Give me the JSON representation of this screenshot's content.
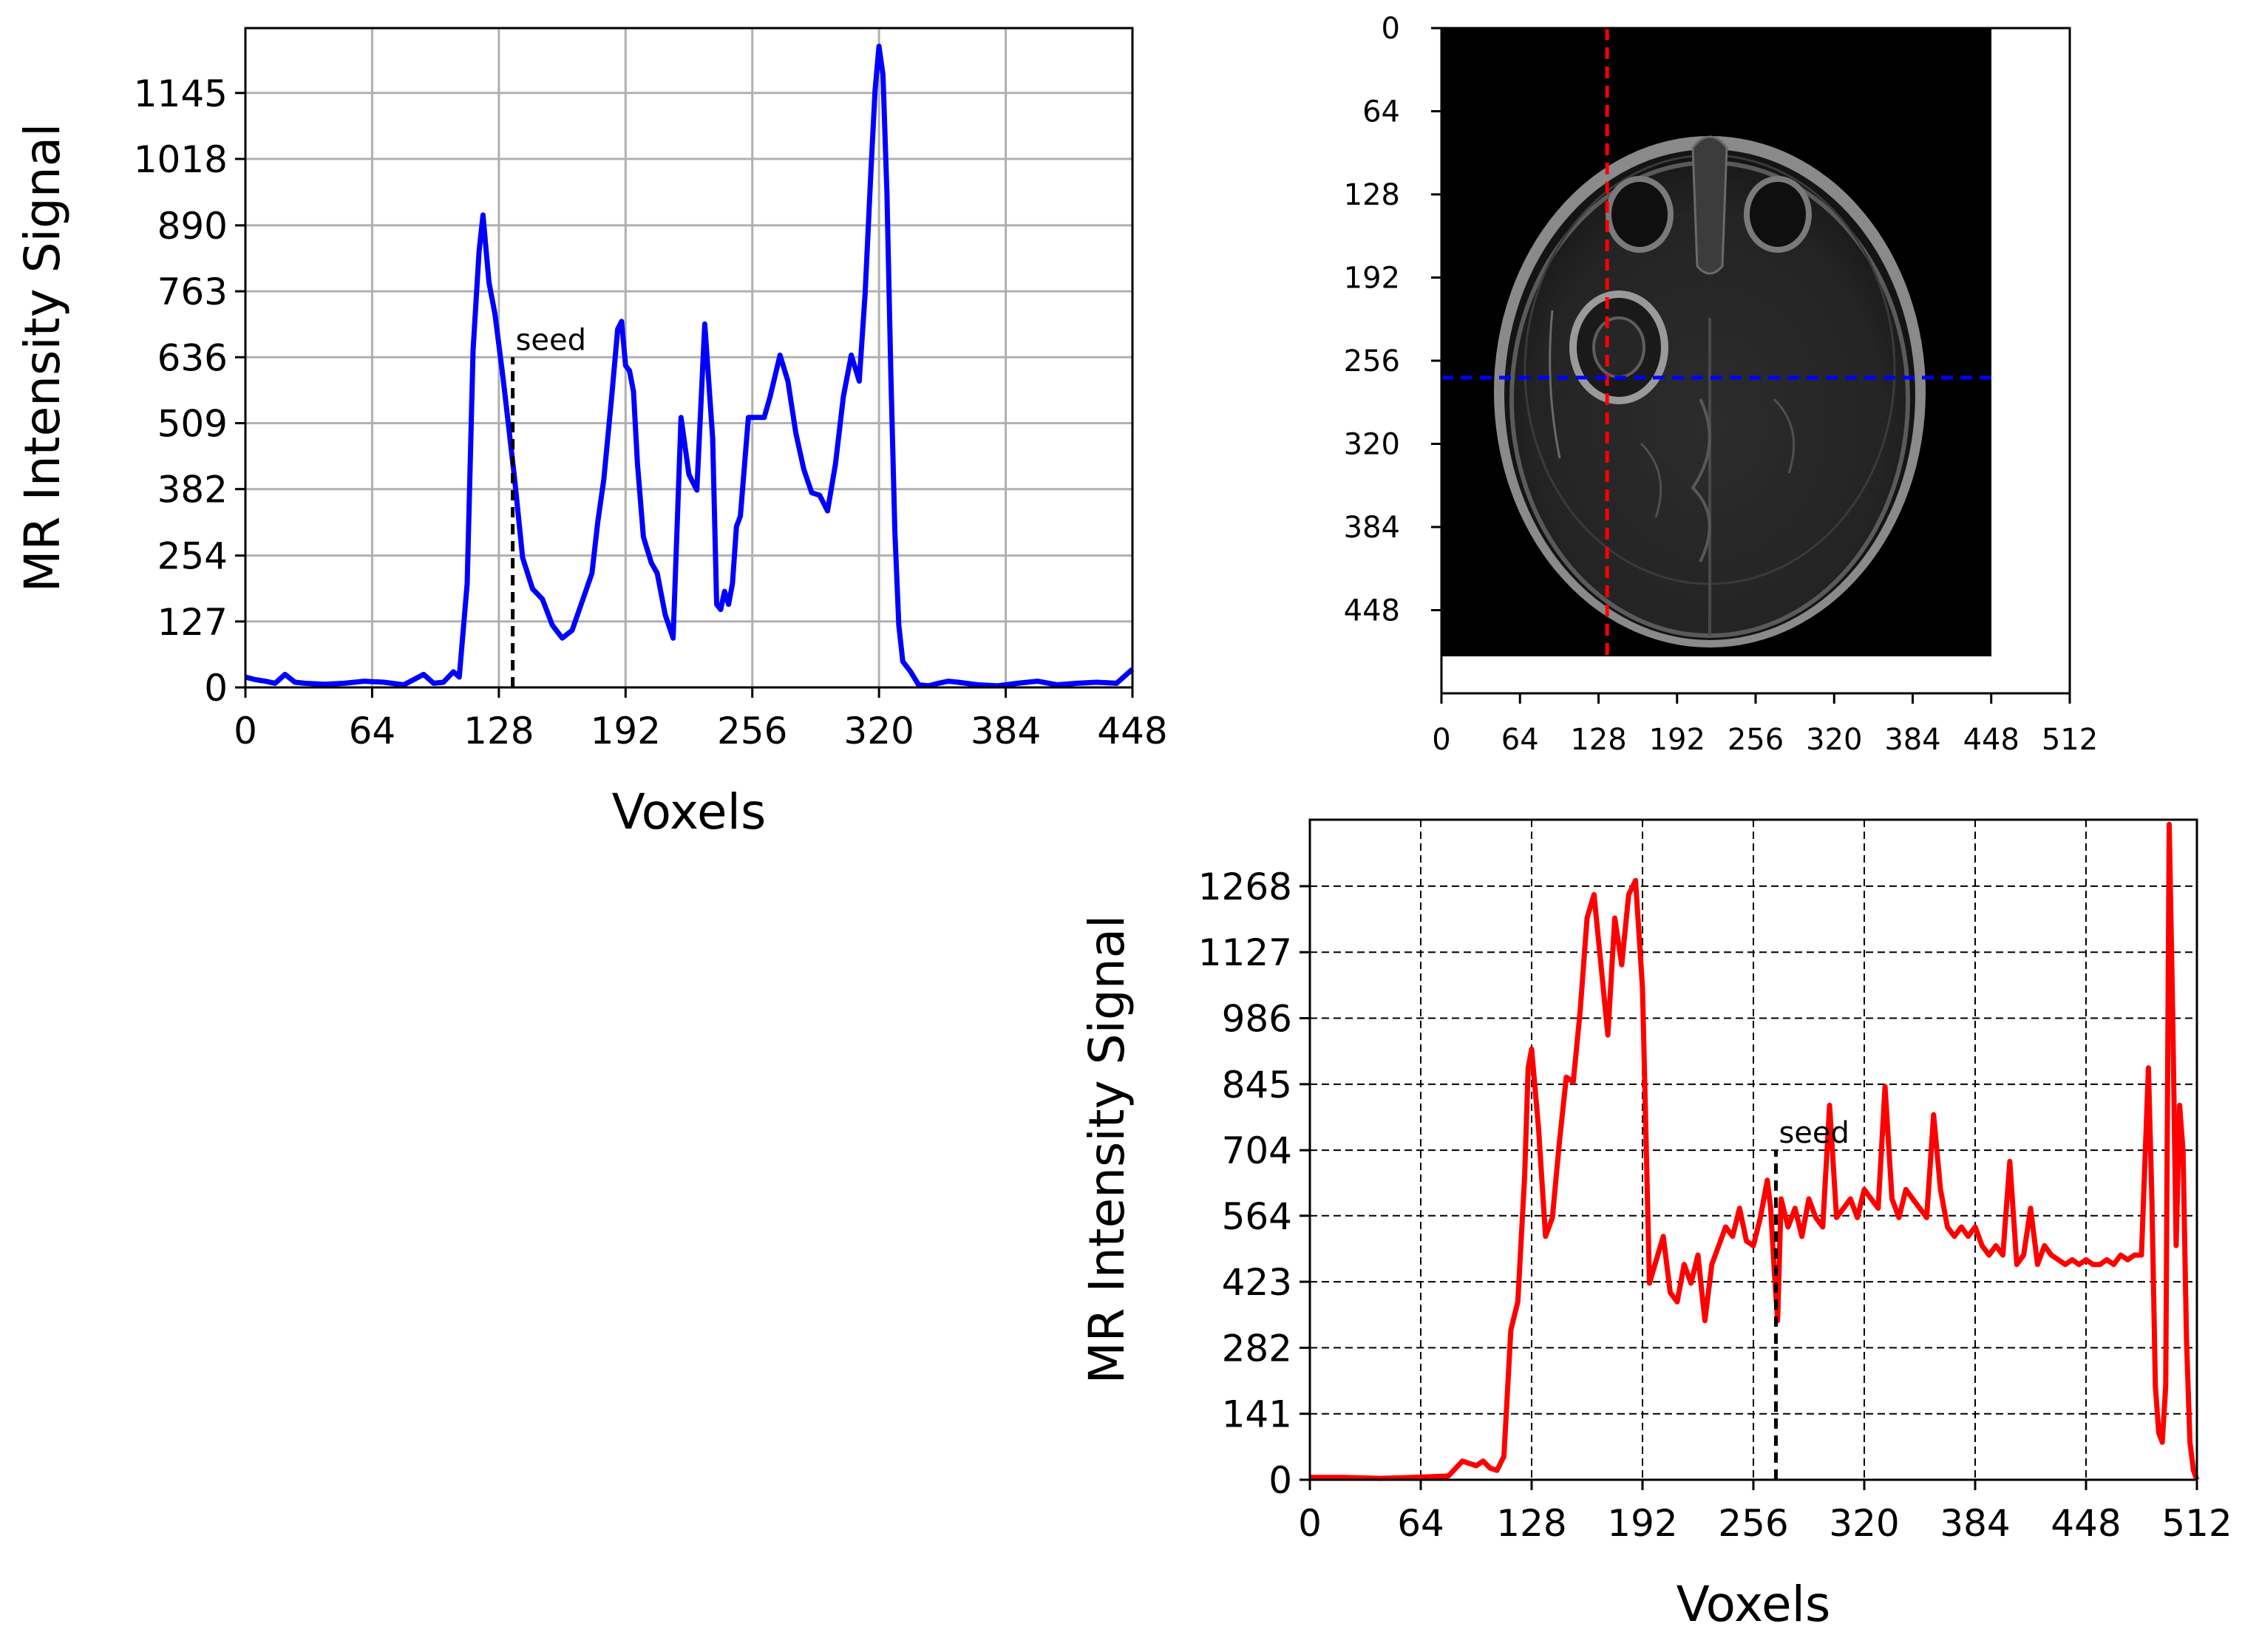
{
  "figure": {
    "colors": {
      "horizontal_profile": "#0000ff",
      "vertical_profile": "#ff0000",
      "seed_line": "#000000",
      "grid": "#b0b0b0"
    }
  },
  "chart_data": [
    {
      "id": "horizontal_profile",
      "type": "line",
      "xlabel": "Voxels",
      "ylabel": "MR Intensity Signal",
      "xlim": [
        0,
        448
      ],
      "ylim": [
        0,
        1270
      ],
      "xticks": [
        0,
        64,
        128,
        192,
        256,
        320,
        384,
        448
      ],
      "yticks": [
        0,
        127,
        254,
        382,
        509,
        636,
        763,
        890,
        1018,
        1145
      ],
      "grid": "solid",
      "color": "#0000ff",
      "annotation": {
        "text": "seed",
        "x": 135,
        "y": 636
      },
      "series": [
        {
          "x": [
            0,
            5,
            10,
            15,
            20,
            25,
            30,
            40,
            50,
            60,
            70,
            80,
            90,
            95,
            100,
            105,
            108,
            112,
            115,
            118,
            120,
            123,
            126,
            130,
            133,
            136,
            140,
            145,
            150,
            155,
            160,
            165,
            170,
            175,
            178,
            181,
            185,
            188,
            190,
            192,
            194,
            196,
            198,
            201,
            205,
            208,
            212,
            216,
            220,
            224,
            228,
            232,
            236,
            238,
            240,
            242,
            244,
            246,
            248,
            250,
            254,
            258,
            262,
            265,
            270,
            274,
            278,
            282,
            286,
            290,
            294,
            298,
            302,
            306,
            310,
            313,
            316,
            318,
            320,
            322,
            324,
            326,
            328,
            330,
            332,
            336,
            340,
            345,
            350,
            355,
            360,
            370,
            380,
            390,
            400,
            410,
            420,
            430,
            440,
            445,
            448
          ],
          "y": [
            20,
            15,
            12,
            8,
            25,
            10,
            8,
            6,
            8,
            12,
            10,
            5,
            25,
            8,
            10,
            30,
            20,
            200,
            650,
            840,
            910,
            780,
            720,
            600,
            500,
            400,
            250,
            190,
            170,
            120,
            95,
            110,
            165,
            220,
            320,
            400,
            560,
            690,
            705,
            620,
            610,
            570,
            430,
            290,
            240,
            220,
            140,
            95,
            520,
            410,
            380,
            700,
            480,
            160,
            150,
            185,
            160,
            200,
            310,
            330,
            520,
            520,
            520,
            560,
            640,
            590,
            490,
            420,
            375,
            370,
            340,
            430,
            560,
            640,
            590,
            760,
            1000,
            1150,
            1235,
            1180,
            950,
            600,
            300,
            120,
            50,
            30,
            5,
            3,
            8,
            12,
            10,
            5,
            3,
            8,
            12,
            5,
            8,
            10,
            8,
            25,
            35
          ]
        }
      ]
    },
    {
      "id": "axial_mri_slice",
      "type": "image",
      "xlim": [
        0,
        512
      ],
      "ylim": [
        512,
        0
      ],
      "xticks": [
        0,
        64,
        128,
        192,
        256,
        320,
        384,
        448,
        512
      ],
      "yticks": [
        0,
        64,
        128,
        192,
        256,
        320,
        384,
        448
      ],
      "image_extent": [
        0,
        448,
        512,
        0
      ],
      "crosshair": {
        "x": 135,
        "y": 269,
        "vertical_color": "#ff0000",
        "horizontal_color": "#0000ff",
        "style": "dashed"
      }
    },
    {
      "id": "vertical_profile",
      "type": "line",
      "xlabel": "Voxels",
      "ylabel": "MR Intensity Signal",
      "xlim": [
        0,
        512
      ],
      "ylim": [
        0,
        1410
      ],
      "xticks": [
        0,
        64,
        128,
        192,
        256,
        320,
        384,
        448,
        512
      ],
      "yticks": [
        0,
        141,
        282,
        423,
        564,
        704,
        845,
        986,
        1127,
        1268
      ],
      "grid": "dashed",
      "color": "#ff0000",
      "annotation": {
        "text": "seed",
        "x": 269,
        "y": 704
      },
      "series": [
        {
          "x": [
            0,
            20,
            40,
            60,
            80,
            88,
            92,
            96,
            100,
            104,
            108,
            112,
            116,
            120,
            124,
            126,
            128,
            132,
            136,
            140,
            144,
            148,
            152,
            156,
            160,
            164,
            168,
            172,
            176,
            180,
            184,
            188,
            192,
            196,
            200,
            204,
            208,
            212,
            216,
            220,
            224,
            228,
            232,
            236,
            240,
            244,
            248,
            252,
            256,
            260,
            264,
            266,
            268,
            270,
            272,
            276,
            280,
            284,
            288,
            292,
            296,
            300,
            304,
            308,
            312,
            316,
            320,
            324,
            328,
            332,
            336,
            340,
            344,
            348,
            352,
            356,
            360,
            364,
            368,
            372,
            376,
            380,
            384,
            388,
            392,
            396,
            400,
            404,
            408,
            412,
            416,
            420,
            424,
            428,
            432,
            436,
            440,
            444,
            448,
            452,
            456,
            460,
            464,
            468,
            472,
            476,
            480,
            484,
            486,
            488,
            490,
            492,
            494,
            496,
            498,
            500,
            502,
            504,
            506,
            508,
            510,
            512
          ],
          "y": [
            5,
            5,
            3,
            5,
            8,
            40,
            35,
            30,
            40,
            25,
            20,
            50,
            320,
            380,
            650,
            880,
            920,
            750,
            520,
            560,
            720,
            860,
            850,
            1000,
            1200,
            1250,
            1100,
            950,
            1200,
            1100,
            1250,
            1280,
            1050,
            420,
            470,
            520,
            400,
            380,
            460,
            420,
            480,
            340,
            460,
            500,
            540,
            520,
            580,
            510,
            500,
            560,
            640,
            580,
            450,
            340,
            600,
            540,
            580,
            520,
            600,
            560,
            540,
            800,
            560,
            580,
            600,
            560,
            620,
            600,
            580,
            840,
            600,
            560,
            620,
            600,
            580,
            560,
            780,
            620,
            540,
            520,
            540,
            520,
            540,
            500,
            480,
            500,
            480,
            680,
            460,
            480,
            580,
            460,
            500,
            480,
            470,
            460,
            470,
            460,
            470,
            460,
            460,
            470,
            460,
            480,
            470,
            480,
            480,
            880,
            600,
            200,
            100,
            80,
            200,
            1400,
            1000,
            500,
            800,
            700,
            300,
            80,
            20,
            0
          ]
        }
      ]
    }
  ]
}
